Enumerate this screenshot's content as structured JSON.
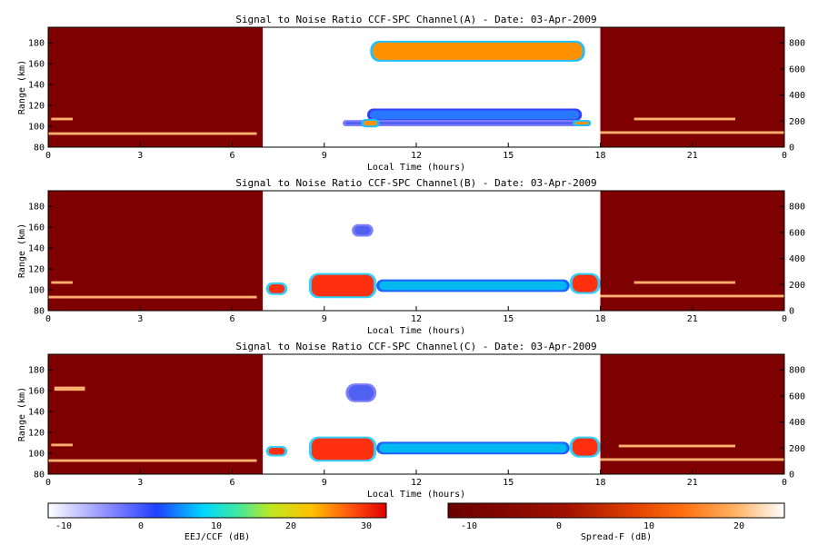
{
  "panels": [
    {
      "title": "Signal to Noise Ratio CCF-SPC Channel(A) - Date: 03-Apr-2009",
      "xlabel": "Local Time (hours)",
      "ylabel": "Range (km)"
    },
    {
      "title": "Signal to Noise Ratio CCF-SPC Channel(B) - Date: 03-Apr-2009",
      "xlabel": "Local Time (hours)",
      "ylabel": "Range (km)"
    },
    {
      "title": "Signal to Noise Ratio CCF-SPC Channel(C) - Date: 03-Apr-2009",
      "xlabel": "Local Time (hours)",
      "ylabel": "Range (km)"
    }
  ],
  "colorbars": [
    {
      "label": "EEJ/CCF (dB)",
      "ticks": [
        "-10",
        "0",
        "10",
        "20",
        "30"
      ],
      "scheme": "blue-white-to-red"
    },
    {
      "label": "Spread-F (dB)",
      "ticks": [
        "-10",
        "0",
        "10",
        "20"
      ],
      "scheme": "darkred-to-white"
    }
  ],
  "colors": {
    "background": "#ffffff",
    "night_fill": "#7f0000",
    "day_fill": "#ffffff",
    "echo_core": "#ff3010",
    "echo_edge": "#2060ff"
  },
  "chart_data": [
    {
      "type": "heatmap",
      "title": "Signal to Noise Ratio CCF-SPC Channel(A) - Date: 03-Apr-2009",
      "xlabel": "Local Time (hours)",
      "ylabel": "Range (km)",
      "x_ticks": [
        "0",
        "3",
        "6",
        "9",
        "12",
        "15",
        "18",
        "21",
        "0"
      ],
      "y_ticks": [
        "80",
        "100",
        "120",
        "140",
        "160",
        "180"
      ],
      "y2_ticks": [
        "0",
        "200",
        "400",
        "600",
        "800"
      ],
      "xlim": [
        0,
        24
      ],
      "ylim": [
        80,
        195
      ],
      "y2lim": [
        0,
        920
      ],
      "day_window": [
        7,
        18
      ],
      "day_echoes": [
        {
          "x0": 10.5,
          "x1": 17.5,
          "y": 172,
          "h": 20,
          "level": 3
        },
        {
          "x0": 10.4,
          "x1": 17.4,
          "y": 111,
          "h": 12,
          "level": 1
        },
        {
          "x0": 9.6,
          "x1": 17.3,
          "y": 103,
          "h": 6,
          "level": 0
        },
        {
          "x0": 10.2,
          "x1": 10.8,
          "y": 103,
          "h": 8,
          "level": 3
        },
        {
          "x0": 17.1,
          "x1": 17.7,
          "y": 103,
          "h": 6,
          "level": 3
        }
      ],
      "night_layers": [
        {
          "x0": 0,
          "x1": 6.8,
          "y": 93,
          "h": 2.5
        },
        {
          "x0": 18,
          "x1": 24,
          "y": 94,
          "h": 2.5
        },
        {
          "x0": 0.1,
          "x1": 0.8,
          "y": 107,
          "h": 2.5
        },
        {
          "x0": 19.1,
          "x1": 22.4,
          "y": 107,
          "h": 2.5
        }
      ]
    },
    {
      "type": "heatmap",
      "title": "Signal to Noise Ratio CCF-SPC Channel(B) - Date: 03-Apr-2009",
      "xlabel": "Local Time (hours)",
      "ylabel": "Range (km)",
      "x_ticks": [
        "0",
        "3",
        "6",
        "9",
        "12",
        "15",
        "18",
        "21",
        "0"
      ],
      "y_ticks": [
        "80",
        "100",
        "120",
        "140",
        "160",
        "180"
      ],
      "y2_ticks": [
        "0",
        "200",
        "400",
        "600",
        "800"
      ],
      "xlim": [
        0,
        24
      ],
      "ylim": [
        80,
        195
      ],
      "y2lim": [
        0,
        920
      ],
      "day_window": [
        7,
        18
      ],
      "day_echoes": [
        {
          "x0": 8.5,
          "x1": 10.7,
          "y": 104,
          "h": 24,
          "level": 4
        },
        {
          "x0": 7.1,
          "x1": 7.8,
          "y": 101,
          "h": 12,
          "level": 4
        },
        {
          "x0": 10.7,
          "x1": 17.0,
          "y": 104,
          "h": 12,
          "level": 2
        },
        {
          "x0": 17.0,
          "x1": 18.0,
          "y": 106,
          "h": 20,
          "level": 4
        },
        {
          "x0": 9.9,
          "x1": 10.6,
          "y": 157,
          "h": 12,
          "level": 0
        }
      ],
      "night_layers": [
        {
          "x0": 0,
          "x1": 6.8,
          "y": 93,
          "h": 2.5
        },
        {
          "x0": 18,
          "x1": 24,
          "y": 94,
          "h": 2.5
        },
        {
          "x0": 0.1,
          "x1": 0.8,
          "y": 107,
          "h": 2.5
        },
        {
          "x0": 19.1,
          "x1": 22.4,
          "y": 107,
          "h": 2.5
        }
      ]
    },
    {
      "type": "heatmap",
      "title": "Signal to Noise Ratio CCF-SPC Channel(C) - Date: 03-Apr-2009",
      "xlabel": "Local Time (hours)",
      "ylabel": "Range (km)",
      "x_ticks": [
        "0",
        "3",
        "6",
        "9",
        "12",
        "15",
        "18",
        "21",
        "0"
      ],
      "y_ticks": [
        "80",
        "100",
        "120",
        "140",
        "160",
        "180"
      ],
      "y2_ticks": [
        "0",
        "200",
        "400",
        "600",
        "800"
      ],
      "xlim": [
        0,
        24
      ],
      "ylim": [
        80,
        195
      ],
      "y2lim": [
        0,
        920
      ],
      "day_window": [
        7,
        18
      ],
      "day_echoes": [
        {
          "x0": 8.5,
          "x1": 10.7,
          "y": 104,
          "h": 24,
          "level": 4
        },
        {
          "x0": 7.1,
          "x1": 7.8,
          "y": 102,
          "h": 10,
          "level": 4
        },
        {
          "x0": 10.7,
          "x1": 17.0,
          "y": 105,
          "h": 12,
          "level": 2
        },
        {
          "x0": 17.0,
          "x1": 18.0,
          "y": 106,
          "h": 20,
          "level": 4
        },
        {
          "x0": 9.7,
          "x1": 10.7,
          "y": 158,
          "h": 18,
          "level": 0
        }
      ],
      "night_layers": [
        {
          "x0": 0,
          "x1": 6.8,
          "y": 93,
          "h": 2.5
        },
        {
          "x0": 18,
          "x1": 24,
          "y": 94,
          "h": 2.5
        },
        {
          "x0": 0.1,
          "x1": 0.8,
          "y": 108,
          "h": 2.5
        },
        {
          "x0": 18.6,
          "x1": 22.4,
          "y": 107,
          "h": 2.5
        },
        {
          "x0": 0.2,
          "x1": 1.2,
          "y": 162,
          "h": 4
        }
      ]
    }
  ]
}
